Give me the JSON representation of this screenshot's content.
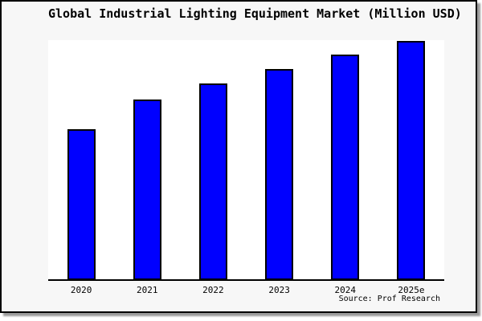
{
  "window": {
    "background_color": "#ffffff",
    "frame_background_color": "#f7f7f7",
    "frame_border_color": "#000000",
    "frame_shadow_color": "#9a9a9a"
  },
  "chart_data": {
    "type": "bar",
    "title": "Global Industrial Lighting Equipment Market (Million USD)",
    "categories": [
      "2020",
      "2021",
      "2022",
      "2023",
      "2024",
      "2025e"
    ],
    "values_relative_pct_of_max": [
      63.1,
      75.5,
      82.2,
      88.3,
      94.3,
      100
    ],
    "xlabel": "",
    "ylabel": "",
    "y_axis_labels_visible": false,
    "gridlines": false,
    "legend": "none",
    "bar_color": "#0000ff",
    "bar_border_color": "#000000",
    "plot_background_color": "#ffffff",
    "source_note": "Source: Prof Research"
  }
}
